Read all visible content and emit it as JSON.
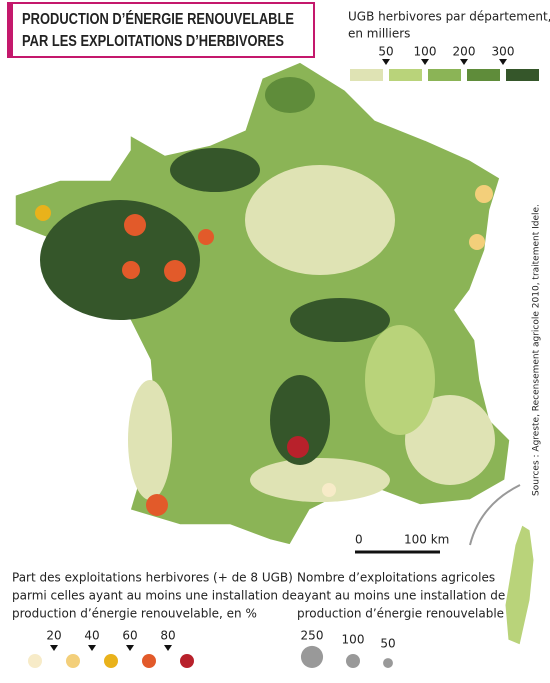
{
  "title": [
    "PRODUCTION D’ÉNERGIE RENOUVELABLE",
    "PAR LES EXPLOITATIONS D’HERBIVORES"
  ],
  "ugb_legend": {
    "title": [
      "UGB herbivores par département,",
      "en milliers"
    ],
    "ticks": [
      50,
      100,
      200,
      300
    ],
    "colors": [
      "#dfe3b4",
      "#b9d37a",
      "#8bb456",
      "#5f8c3a",
      "#35562a"
    ]
  },
  "source": "Sources : Agreste, Recensement agricole 2010, traitement Idele.",
  "scale": {
    "start": "0",
    "end": "100 km"
  },
  "share_legend": {
    "title": [
      "Part des exploitations herbivores (+ de 8 UGB)",
      "parmi celles ayant au moins une installation de",
      "production d’énergie renouvelable, en %"
    ],
    "ticks": [
      20,
      40,
      60,
      80
    ],
    "colors": [
      "#f7ebc8",
      "#f3cf7a",
      "#e9b21b",
      "#e25a2a",
      "#b8212b"
    ]
  },
  "count_legend": {
    "title": [
      "Nombre d’exploitations agricoles",
      "ayant au moins une installation de",
      "production d’énergie renouvelable"
    ],
    "values": [
      250,
      100,
      50
    ]
  }
}
